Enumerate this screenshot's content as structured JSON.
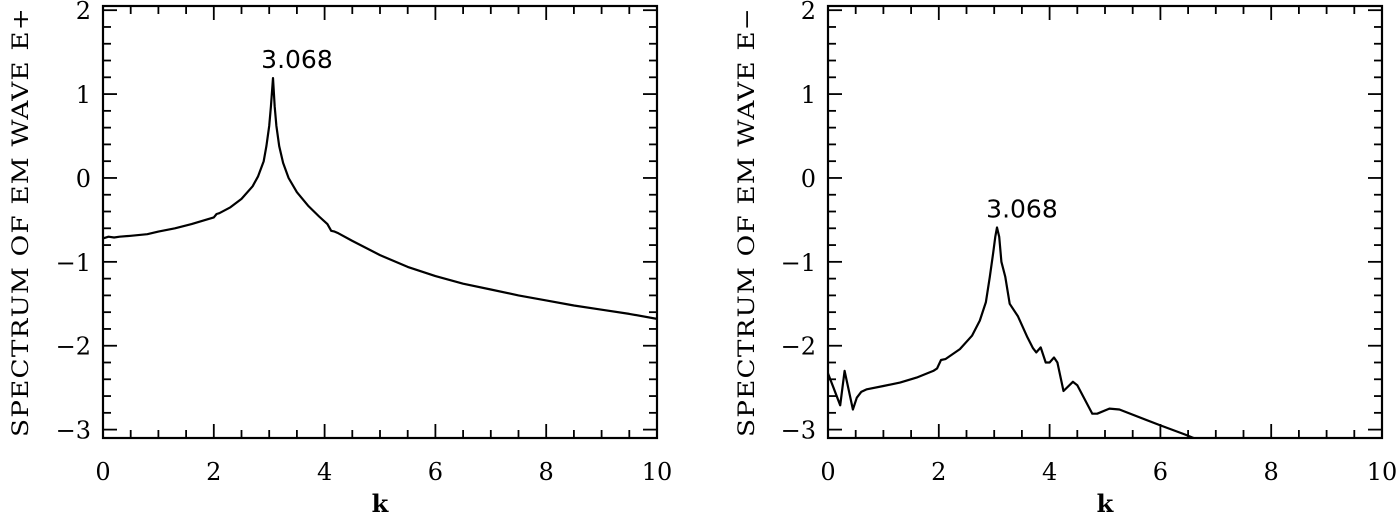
{
  "chart_data": [
    {
      "type": "line",
      "title": "",
      "xlabel": "k",
      "ylabel": "SPECTRUM OF EM WAVE E+",
      "xlim": [
        0,
        10
      ],
      "ylim": [
        -3.1,
        2.05
      ],
      "xticks": [
        0,
        2,
        4,
        6,
        8,
        10
      ],
      "xtick_labels": [
        "0",
        "2",
        "4",
        "6",
        "8",
        "10"
      ],
      "yticks": [
        -3,
        -2,
        -1,
        0,
        1,
        2
      ],
      "ytick_labels": [
        "−3",
        "−2",
        "−1",
        "0",
        "1",
        "2"
      ],
      "x_minor_step": 0.5,
      "y_minor_step": 0.2,
      "grid": false,
      "annotation": {
        "text": "3.068",
        "x": 3.068,
        "y": 1.19
      },
      "series": [
        {
          "name": "E+",
          "x": [
            0.0,
            0.1,
            0.2,
            0.3,
            0.5,
            0.8,
            1.0,
            1.3,
            1.6,
            1.9,
            2.0,
            2.05,
            2.1,
            2.3,
            2.5,
            2.7,
            2.8,
            2.9,
            2.95,
            3.0,
            3.03,
            3.068,
            3.1,
            3.13,
            3.18,
            3.25,
            3.35,
            3.5,
            3.7,
            3.9,
            4.05,
            4.12,
            4.18,
            4.25,
            4.5,
            5.0,
            5.5,
            6.0,
            6.5,
            7.0,
            7.5,
            8.0,
            8.5,
            9.0,
            9.5,
            10.0
          ],
          "y": [
            -0.72,
            -0.7,
            -0.71,
            -0.7,
            -0.69,
            -0.67,
            -0.64,
            -0.6,
            -0.55,
            -0.49,
            -0.47,
            -0.43,
            -0.42,
            -0.35,
            -0.25,
            -0.1,
            0.02,
            0.2,
            0.38,
            0.62,
            0.85,
            1.19,
            0.85,
            0.62,
            0.38,
            0.18,
            0.0,
            -0.17,
            -0.33,
            -0.46,
            -0.55,
            -0.63,
            -0.64,
            -0.66,
            -0.75,
            -0.92,
            -1.06,
            -1.17,
            -1.26,
            -1.33,
            -1.4,
            -1.46,
            -1.52,
            -1.57,
            -1.62,
            -1.68
          ]
        }
      ]
    },
    {
      "type": "line",
      "title": "",
      "xlabel": "k",
      "ylabel": "SPECTRUM OF EM WAVE E−",
      "xlim": [
        0,
        10
      ],
      "ylim": [
        -3.1,
        2.05
      ],
      "xticks": [
        0,
        2,
        4,
        6,
        8,
        10
      ],
      "xtick_labels": [
        "0",
        "2",
        "4",
        "6",
        "8",
        "10"
      ],
      "yticks": [
        -3,
        -2,
        -1,
        0,
        1,
        2
      ],
      "ytick_labels": [
        "−3",
        "−2",
        "−1",
        "0",
        "1",
        "2"
      ],
      "x_minor_step": 0.5,
      "y_minor_step": 0.2,
      "grid": false,
      "annotation": {
        "text": "3.068",
        "x": 3.068,
        "y": -0.59
      },
      "series": [
        {
          "name": "E−",
          "x": [
            0.0,
            0.1,
            0.22,
            0.3,
            0.45,
            0.52,
            0.6,
            0.7,
            1.0,
            1.3,
            1.6,
            1.9,
            1.97,
            2.04,
            2.12,
            2.38,
            2.6,
            2.74,
            2.85,
            2.92,
            2.98,
            3.02,
            3.05,
            3.09,
            3.13,
            3.2,
            3.28,
            3.43,
            3.6,
            3.7,
            3.76,
            3.84,
            3.93,
            4.0,
            4.08,
            4.14,
            4.25,
            4.42,
            4.5,
            4.77,
            4.86,
            5.08,
            5.26,
            6.0,
            6.45,
            6.6
          ],
          "y": [
            -2.33,
            -2.5,
            -2.71,
            -2.3,
            -2.76,
            -2.62,
            -2.55,
            -2.52,
            -2.48,
            -2.44,
            -2.38,
            -2.3,
            -2.27,
            -2.17,
            -2.16,
            -2.04,
            -1.88,
            -1.7,
            -1.48,
            -1.18,
            -0.9,
            -0.7,
            -0.59,
            -0.7,
            -1.0,
            -1.18,
            -1.5,
            -1.65,
            -1.9,
            -2.03,
            -2.08,
            -2.02,
            -2.2,
            -2.2,
            -2.14,
            -2.2,
            -2.54,
            -2.43,
            -2.47,
            -2.81,
            -2.81,
            -2.75,
            -2.76,
            -2.95,
            -3.06,
            -3.1
          ]
        }
      ]
    }
  ]
}
